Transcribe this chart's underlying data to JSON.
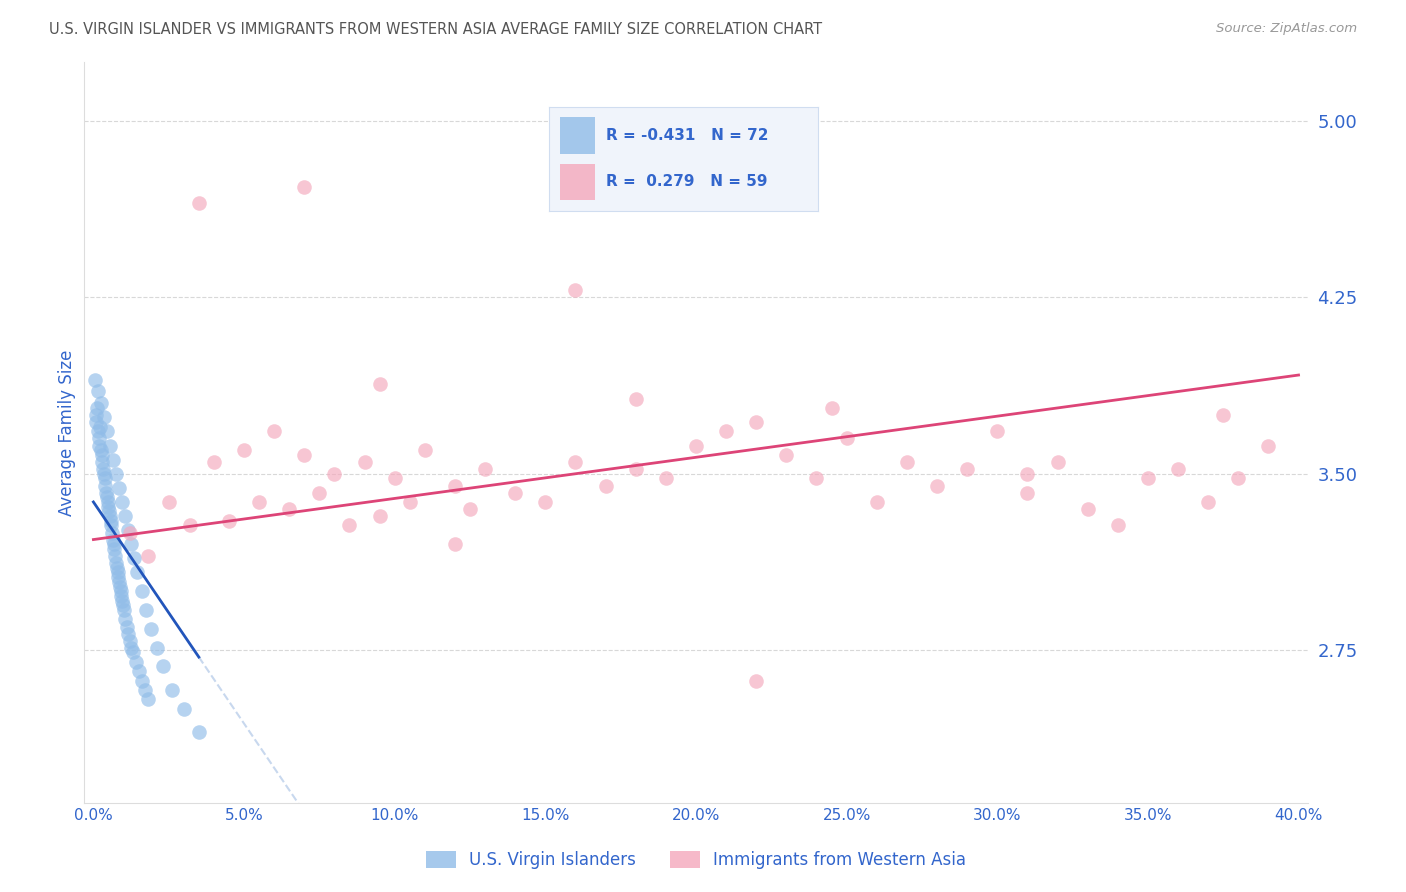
{
  "title": "U.S. VIRGIN ISLANDER VS IMMIGRANTS FROM WESTERN ASIA AVERAGE FAMILY SIZE CORRELATION CHART",
  "source": "Source: ZipAtlas.com",
  "ylabel": "Average Family Size",
  "xlabel_ticks": [
    "0.0%",
    "5.0%",
    "10.0%",
    "15.0%",
    "20.0%",
    "25.0%",
    "30.0%",
    "35.0%",
    "40.0%"
  ],
  "xlabel_vals": [
    0.0,
    5.0,
    10.0,
    15.0,
    20.0,
    25.0,
    30.0,
    35.0,
    40.0
  ],
  "yticks_right": [
    2.75,
    3.5,
    4.25,
    5.0
  ],
  "ylim": [
    2.1,
    5.25
  ],
  "xlim": [
    -0.3,
    40.3
  ],
  "blue_color": "#90bce8",
  "pink_color": "#f4a8bc",
  "trend_blue": "#2255bb",
  "trend_pink": "#dd4477",
  "trend_gray": "#c8d8ee",
  "axis_label_color": "#3366cc",
  "legend_bg": "#f0f4fb",
  "legend_border": "#d0ddf0",
  "blue_scatter_x": [
    0.05,
    0.08,
    0.1,
    0.12,
    0.15,
    0.18,
    0.2,
    0.22,
    0.25,
    0.28,
    0.3,
    0.32,
    0.35,
    0.38,
    0.4,
    0.42,
    0.45,
    0.48,
    0.5,
    0.52,
    0.55,
    0.58,
    0.6,
    0.62,
    0.65,
    0.68,
    0.7,
    0.72,
    0.75,
    0.78,
    0.8,
    0.82,
    0.85,
    0.88,
    0.9,
    0.92,
    0.95,
    0.98,
    1.0,
    1.05,
    1.1,
    1.15,
    1.2,
    1.25,
    1.3,
    1.4,
    1.5,
    1.6,
    1.7,
    1.8,
    0.15,
    0.25,
    0.35,
    0.45,
    0.55,
    0.65,
    0.75,
    0.85,
    0.95,
    1.05,
    1.15,
    1.25,
    1.35,
    1.45,
    1.6,
    1.75,
    1.9,
    2.1,
    2.3,
    2.6,
    3.0,
    3.5
  ],
  "blue_scatter_y": [
    3.9,
    3.75,
    3.72,
    3.78,
    3.68,
    3.65,
    3.62,
    3.7,
    3.6,
    3.58,
    3.55,
    3.52,
    3.5,
    3.48,
    3.45,
    3.42,
    3.4,
    3.38,
    3.36,
    3.34,
    3.32,
    3.3,
    3.28,
    3.25,
    3.22,
    3.2,
    3.18,
    3.15,
    3.12,
    3.1,
    3.08,
    3.06,
    3.04,
    3.02,
    3.0,
    2.98,
    2.96,
    2.94,
    2.92,
    2.88,
    2.85,
    2.82,
    2.79,
    2.76,
    2.74,
    2.7,
    2.66,
    2.62,
    2.58,
    2.54,
    3.85,
    3.8,
    3.74,
    3.68,
    3.62,
    3.56,
    3.5,
    3.44,
    3.38,
    3.32,
    3.26,
    3.2,
    3.14,
    3.08,
    3.0,
    2.92,
    2.84,
    2.76,
    2.68,
    2.58,
    2.5,
    2.4
  ],
  "pink_scatter_x": [
    1.2,
    1.8,
    2.5,
    3.2,
    4.0,
    4.5,
    5.0,
    5.5,
    6.0,
    6.5,
    7.0,
    7.5,
    8.0,
    8.5,
    9.0,
    9.5,
    10.0,
    10.5,
    11.0,
    12.0,
    12.5,
    13.0,
    14.0,
    15.0,
    16.0,
    17.0,
    18.0,
    19.0,
    20.0,
    21.0,
    22.0,
    23.0,
    24.0,
    25.0,
    26.0,
    27.0,
    28.0,
    29.0,
    30.0,
    31.0,
    32.0,
    33.0,
    34.0,
    35.0,
    36.0,
    37.0,
    38.0,
    39.0,
    9.5,
    18.0,
    24.5,
    31.0,
    37.5,
    22.0,
    16.0,
    7.0,
    3.5,
    12.0
  ],
  "pink_scatter_y": [
    3.25,
    3.15,
    3.38,
    3.28,
    3.55,
    3.3,
    3.6,
    3.38,
    3.68,
    3.35,
    3.58,
    3.42,
    3.5,
    3.28,
    3.55,
    3.32,
    3.48,
    3.38,
    3.6,
    3.45,
    3.35,
    3.52,
    3.42,
    3.38,
    3.55,
    3.45,
    3.52,
    3.48,
    3.62,
    3.68,
    3.72,
    3.58,
    3.48,
    3.65,
    3.38,
    3.55,
    3.45,
    3.52,
    3.68,
    3.42,
    3.55,
    3.35,
    3.28,
    3.48,
    3.52,
    3.38,
    3.48,
    3.62,
    3.88,
    3.82,
    3.78,
    3.5,
    3.75,
    2.62,
    4.28,
    4.72,
    4.65,
    3.2
  ],
  "blue_trend_x0": 0.0,
  "blue_trend_x1": 3.5,
  "blue_trend_y0": 3.38,
  "blue_trend_y1": 2.72,
  "pink_trend_x0": 0.0,
  "pink_trend_x1": 40.0,
  "pink_trend_y0": 3.22,
  "pink_trend_y1": 3.92
}
